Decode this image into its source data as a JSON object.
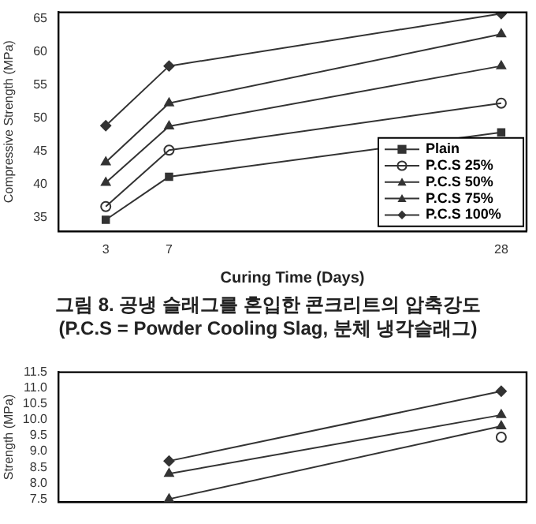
{
  "chart_data": [
    {
      "type": "line",
      "xlabel": "Curing Time (Days)",
      "ylabel": "Compressive Strength (MPa)",
      "x": [
        3,
        7,
        28
      ],
      "xlim": [
        0,
        29.6
      ],
      "xticks": [
        3,
        7,
        28
      ],
      "ylim": [
        33,
        66
      ],
      "yticks": [
        35,
        40,
        45,
        50,
        55,
        60,
        65
      ],
      "legend": "bottom right",
      "grid": false,
      "annotations": [
        "그림 8. 공냉 슬래그를 혼입한 콘크리트의 압축강도",
        "(P.C.S = Powder Cooling Slag, 분체 냉각슬래그)"
      ],
      "series": [
        {
          "name": "Plain",
          "color": "#333333",
          "marker": "square",
          "values": [
            34.7,
            41.2,
            47.9
          ]
        },
        {
          "name": "P.C.S 25%",
          "color": "#333333",
          "marker": "circle",
          "values": [
            36.7,
            45.2,
            52.3
          ]
        },
        {
          "name": "P.C.S 50%",
          "color": "#333333",
          "marker": "triangle",
          "values": [
            40.3,
            48.8,
            57.9
          ]
        },
        {
          "name": "P.C.S 75%",
          "color": "#333333",
          "marker": "triangle",
          "values": [
            43.4,
            52.3,
            62.7
          ]
        },
        {
          "name": "P.C.S 100%",
          "color": "#333333",
          "marker": "diamond",
          "values": [
            48.9,
            57.9,
            65.8
          ]
        }
      ]
    },
    {
      "type": "line",
      "ylabel": "Strength (MPa)",
      "x": [
        7,
        28
      ],
      "xlim": [
        0,
        29.6
      ],
      "ylim": [
        7.4,
        11.5
      ],
      "yticks": [
        {
          "value": 7.5,
          "label": "7.5"
        },
        {
          "value": 8,
          "label": "8.0"
        },
        {
          "value": 8.5,
          "label": "8.5"
        },
        {
          "value": 9,
          "label": "9.0"
        },
        {
          "value": 9.5,
          "label": "9.5"
        },
        {
          "value": 10,
          "label": "10.0"
        },
        {
          "value": 10.5,
          "label": "10.5"
        },
        {
          "value": 11,
          "label": "11.0"
        },
        {
          "value": 11.5,
          "label": "11.5"
        }
      ],
      "tick_labels": "y",
      "grid": false,
      "series": [
        {
          "color": "#333333",
          "marker": "circle",
          "values": [
            null,
            9.45
          ]
        },
        {
          "color": "#333333",
          "marker": "triangle",
          "values": [
            7.5,
            9.8
          ]
        },
        {
          "color": "#333333",
          "marker": "triangle",
          "values": [
            8.3,
            10.15
          ]
        },
        {
          "color": "#333333",
          "marker": "diamond",
          "values": [
            8.7,
            10.9
          ]
        }
      ]
    }
  ]
}
